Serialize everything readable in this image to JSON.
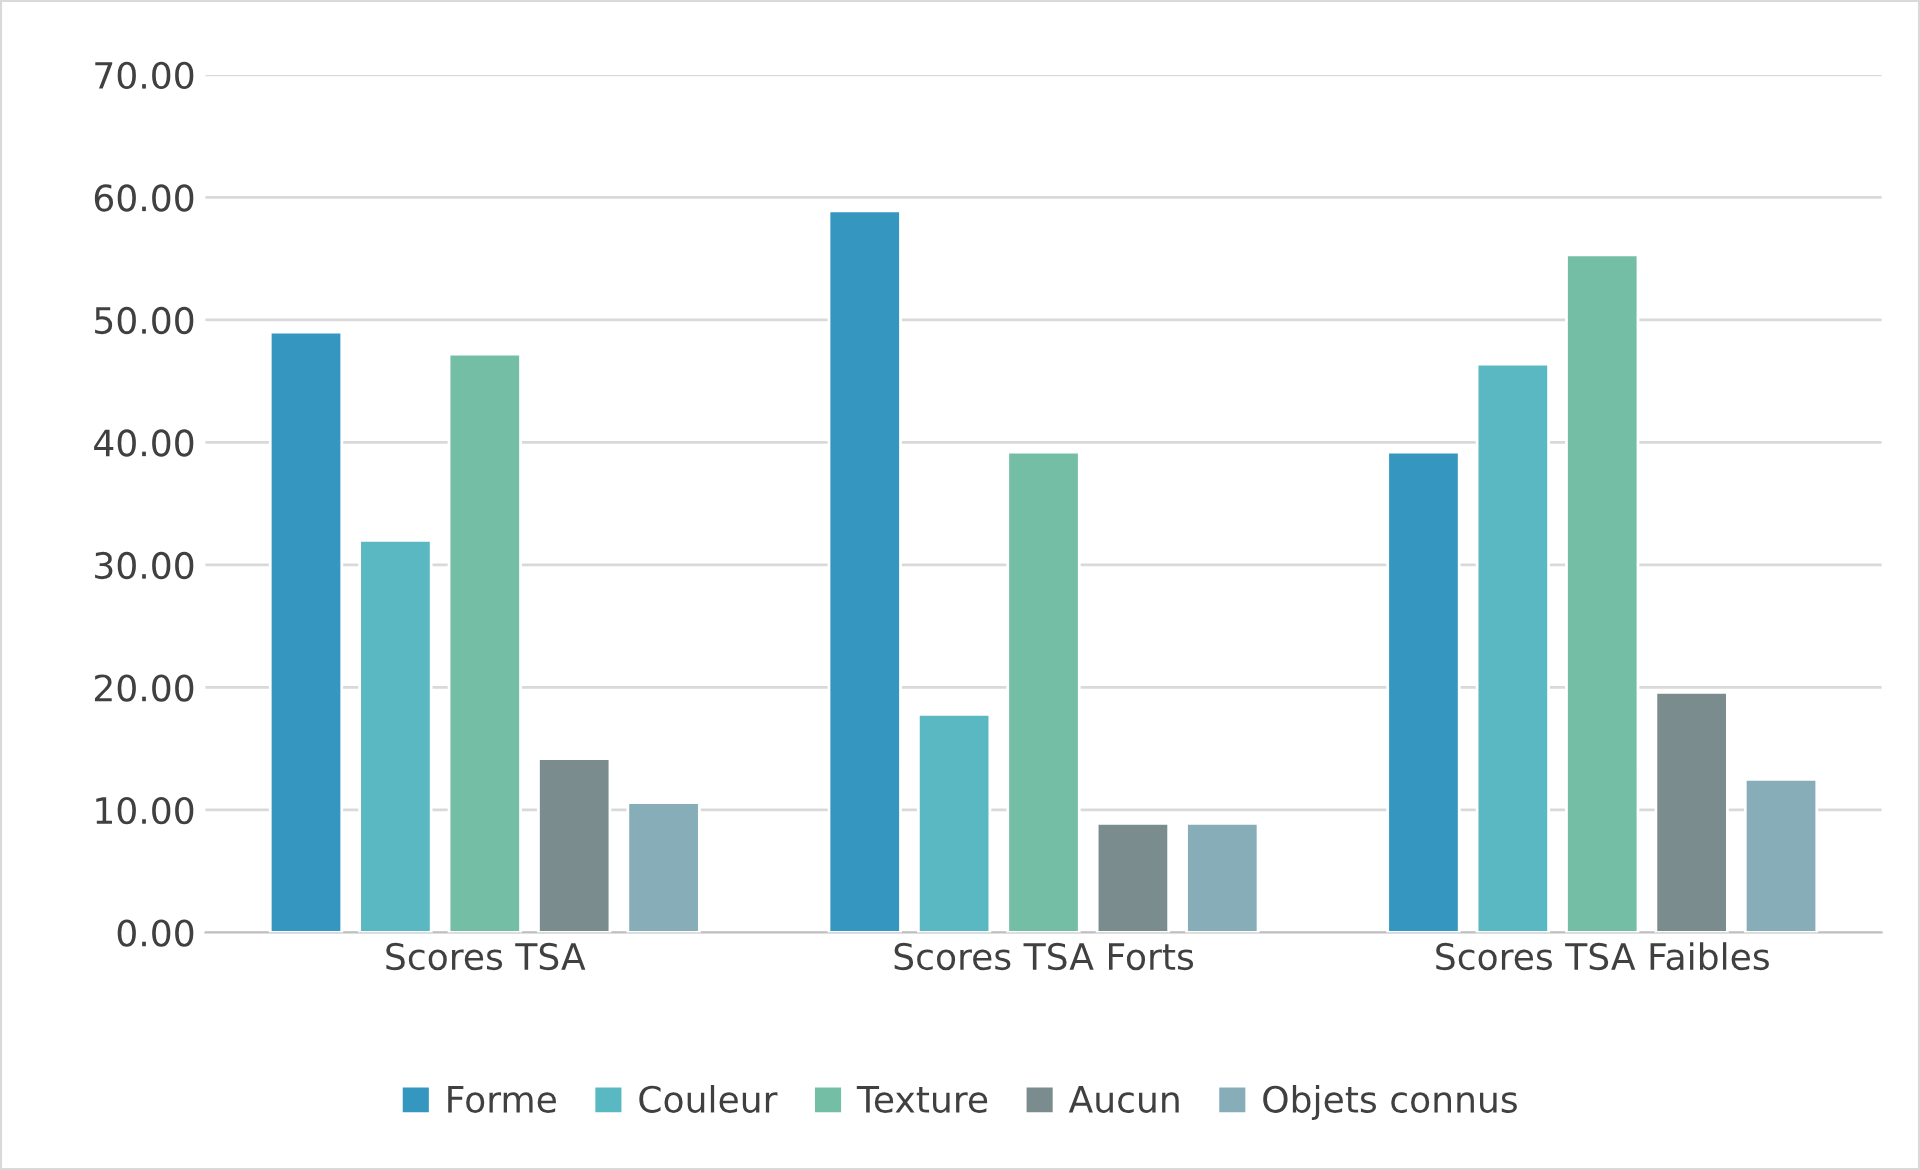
{
  "chart_data": {
    "type": "bar",
    "categories": [
      "Scores TSA",
      "Scores TSA Forts",
      "Scores TSA Faibles"
    ],
    "series": [
      {
        "name": "Forme",
        "color": "#3597bf",
        "values": [
          49.0,
          58.9,
          39.2
        ]
      },
      {
        "name": "Couleur",
        "color": "#5ab8c2",
        "values": [
          32.0,
          17.8,
          46.4
        ]
      },
      {
        "name": "Texture",
        "color": "#74bea6",
        "values": [
          47.2,
          39.2,
          55.3
        ]
      },
      {
        "name": "Aucun",
        "color": "#7a8c8e",
        "values": [
          14.2,
          8.9,
          19.6
        ]
      },
      {
        "name": "Objets connus",
        "color": "#87aeb8",
        "values": [
          10.6,
          8.9,
          12.5
        ]
      }
    ],
    "ylim": [
      0,
      70
    ],
    "yticks": [
      {
        "value": 0,
        "label": "0.00"
      },
      {
        "value": 10,
        "label": "10.00"
      },
      {
        "value": 20,
        "label": "20.00"
      },
      {
        "value": 30,
        "label": "30.00"
      },
      {
        "value": 40,
        "label": "40.00"
      },
      {
        "value": 50,
        "label": "50.00"
      },
      {
        "value": 60,
        "label": "60.00"
      },
      {
        "value": 70,
        "label": "70.00"
      }
    ],
    "grid": "y",
    "legend": "bottom"
  }
}
